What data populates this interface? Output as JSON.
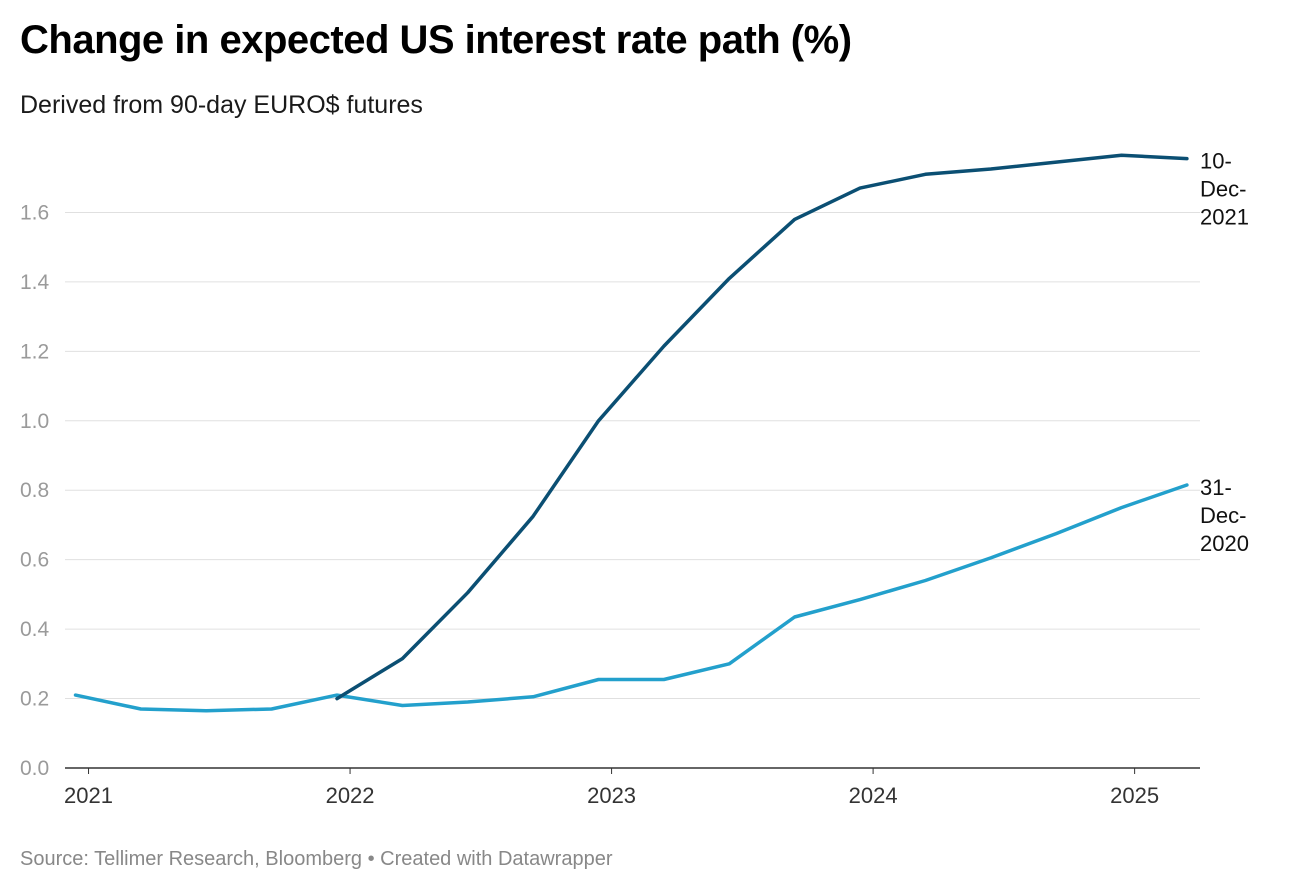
{
  "title": "Change in expected US interest rate path (%)",
  "subtitle": "Derived from 90-day EURO$ futures",
  "footer": {
    "source": "Source: Tellimer Research, Bloomberg",
    "separator": "•",
    "credit": "Created with Datawrapper"
  },
  "colors": {
    "series_dec_2021": "#0b4f73",
    "series_dec_2020": "#23a0cc",
    "gridline": "#e0e0e0",
    "axis": "#333333"
  },
  "chart_data": {
    "type": "line",
    "title": "Change in expected US interest rate path (%)",
    "subtitle": "Derived from 90-day EURO$ futures",
    "xlabel": "",
    "ylabel": "",
    "x_ticks": [
      "2021",
      "2022",
      "2023",
      "2024",
      "2025"
    ],
    "y_ticks": [
      "0.0",
      "0.2",
      "0.4",
      "0.6",
      "0.8",
      "1.0",
      "1.2",
      "1.4",
      "1.6"
    ],
    "xlim": [
      2020.91,
      2025.25
    ],
    "ylim": [
      0,
      1.8
    ],
    "grid": "horizontal",
    "legend": "direct labels at line ends (right)",
    "series": [
      {
        "name": "10-Dec-2021",
        "label_lines": [
          "10-",
          "Dec-",
          "2021"
        ],
        "color_key": "series_dec_2021",
        "x": [
          2021.95,
          2022.2,
          2022.45,
          2022.7,
          2022.95,
          2023.2,
          2023.45,
          2023.7,
          2023.95,
          2024.2,
          2024.45,
          2024.7,
          2024.95,
          2025.2
        ],
        "y": [
          0.2,
          0.315,
          0.505,
          0.725,
          1.0,
          1.215,
          1.41,
          1.58,
          1.67,
          1.71,
          1.725,
          1.745,
          1.765,
          1.755
        ]
      },
      {
        "name": "31-Dec-2020",
        "label_lines": [
          "31-",
          "Dec-",
          "2020"
        ],
        "color_key": "series_dec_2020",
        "x": [
          2020.95,
          2021.2,
          2021.45,
          2021.7,
          2021.95,
          2022.2,
          2022.45,
          2022.7,
          2022.95,
          2023.2,
          2023.45,
          2023.7,
          2023.95,
          2024.2,
          2024.45,
          2024.7,
          2024.95,
          2025.2
        ],
        "y": [
          0.21,
          0.17,
          0.165,
          0.17,
          0.21,
          0.18,
          0.19,
          0.205,
          0.255,
          0.255,
          0.3,
          0.435,
          0.485,
          0.54,
          0.605,
          0.675,
          0.75,
          0.815
        ]
      }
    ]
  }
}
